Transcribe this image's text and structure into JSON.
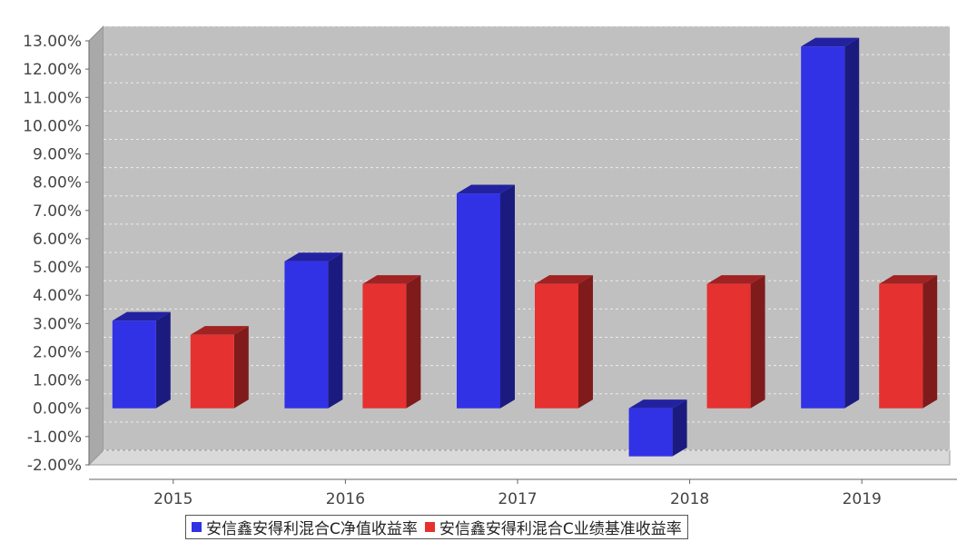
{
  "chart_data": {
    "type": "bar",
    "categories": [
      "2015",
      "2016",
      "2017",
      "2018",
      "2019"
    ],
    "series": [
      {
        "name": "安信鑫安得利混合C净值收益率",
        "color": "#3131e6",
        "values": [
          3.1,
          5.2,
          7.6,
          -1.7,
          12.8
        ]
      },
      {
        "name": "安信鑫安得利混合C业绩基准收益率",
        "color": "#e63131",
        "values": [
          2.6,
          4.4,
          4.4,
          4.4,
          4.4
        ]
      }
    ],
    "ylim": [
      -2,
      13
    ],
    "yticks": [
      "13.00%",
      "12.00%",
      "11.00%",
      "10.00%",
      "9.00%",
      "8.00%",
      "7.00%",
      "6.00%",
      "5.00%",
      "4.00%",
      "3.00%",
      "2.00%",
      "1.00%",
      "0.00%",
      "-1.00%",
      "-2.00%"
    ],
    "grid": true,
    "legend_position": "bottom",
    "style": "3d-bar",
    "title": "",
    "xlabel": "",
    "ylabel": ""
  }
}
